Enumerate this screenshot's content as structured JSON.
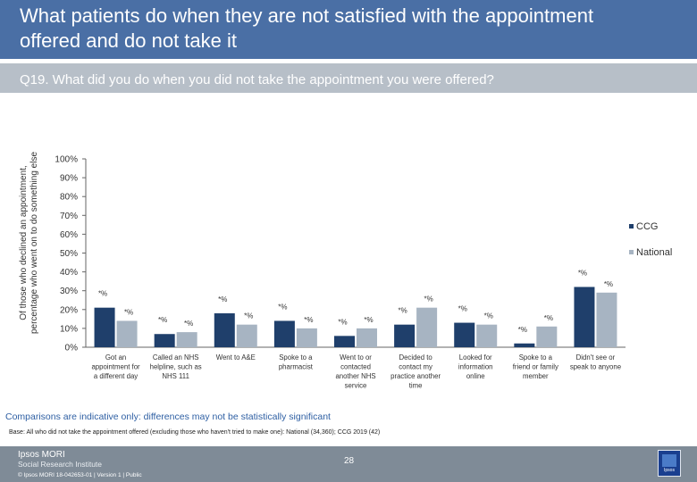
{
  "header": {
    "title": "What patients do when they are not satisfied with the appointment offered and do not take it",
    "question": "Q19. What did you do when you did not take the appointment you were offered?"
  },
  "chart_data": {
    "type": "bar",
    "ylabel": "Of those who declined an appointment, percentage who went on to do something else",
    "ylim": [
      0,
      100
    ],
    "yticks": [
      "0%",
      "10%",
      "20%",
      "30%",
      "40%",
      "50%",
      "60%",
      "70%",
      "80%",
      "90%",
      "100%"
    ],
    "categories": [
      [
        "Got an",
        "appointment for",
        "a different day"
      ],
      [
        "Called an NHS",
        "helpline, such as",
        "NHS 111"
      ],
      [
        "Went to A&E"
      ],
      [
        "Spoke to a",
        "pharmacist"
      ],
      [
        "Went to or",
        "contacted",
        "another NHS",
        "service"
      ],
      [
        "Decided to",
        "contact my",
        "practice another",
        "time"
      ],
      [
        "Looked for",
        "information",
        "online"
      ],
      [
        "Spoke to a",
        "friend or family",
        "member"
      ],
      [
        "Didn't see or",
        "speak to anyone"
      ]
    ],
    "series": [
      {
        "name": "CCG",
        "color": "#1f3f6b",
        "values": [
          21,
          7,
          18,
          14,
          6,
          12,
          13,
          2,
          32
        ],
        "labels": [
          "*%",
          "*%",
          "*%",
          "*%",
          "*%",
          "*%",
          "*%",
          "*%",
          "*%"
        ]
      },
      {
        "name": "National",
        "color": "#a7b4c2",
        "values": [
          14,
          8,
          12,
          10,
          10,
          21,
          12,
          11,
          29
        ],
        "labels": [
          "*%",
          "*%",
          "*%",
          "*%",
          "*%",
          "*%",
          "*%",
          "*%",
          "*%"
        ]
      }
    ],
    "legend": "right"
  },
  "footer": {
    "note": "Comparisons are indicative only: differences may not be statistically significant",
    "base": "Base: All who did not take the appointment offered (excluding those who haven't tried to make one): National (34,360); CCG 2019 (42)",
    "brand": "Ipsos MORI",
    "brand_sub": "Social Research Institute",
    "copyright": "© Ipsos MORI    18-042653-01 | Version 1 | Public",
    "page": "28",
    "badge_text": "Ipsos"
  }
}
